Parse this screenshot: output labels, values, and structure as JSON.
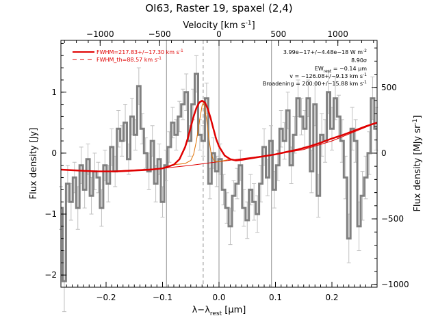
{
  "chart_data": {
    "type": "line",
    "title": "OI63, Raster 19, spaxel (2,4)",
    "xlabel": "λ−λ",
    "xlabel_sub": "rest",
    "xlabel_unit": "[μm]",
    "ylabel": "Flux density [Jy]",
    "y2label": "Flux density [MJy sr",
    "y2label_sup": "-1",
    "y2label_end": "]",
    "top_xlabel": "Velocity [km s",
    "top_xlabel_sup": "-1",
    "top_xlabel_end": "]",
    "xlim": [
      -0.28,
      0.28
    ],
    "ylim": [
      -2.2,
      1.85
    ],
    "y2lim": [
      -1020,
      858
    ],
    "top_xlim": [
      -1330,
      1330
    ],
    "xticks": [
      -0.2,
      -0.1,
      0.0,
      0.1,
      0.2
    ],
    "xtick_labels": [
      "−0.2",
      "−0.1",
      "0.0",
      "0.1",
      "0.2"
    ],
    "yticks": [
      -2,
      -1,
      0,
      1
    ],
    "ytick_labels": [
      "−2",
      "−1",
      "0",
      "1"
    ],
    "y2ticks": [
      -1000,
      -500,
      0,
      500
    ],
    "y2tick_labels": [
      "−1000",
      "−500",
      "0",
      "500"
    ],
    "top_xticks": [
      -1000,
      -500,
      0,
      500,
      1000
    ],
    "top_xtick_labels": [
      "−1000",
      "−500",
      "0",
      "500",
      "1000"
    ],
    "vlines_solid": [
      -0.093,
      0.0,
      0.093
    ],
    "vline_dashed": -0.028,
    "legend": {
      "placement": "top-left",
      "entries": [
        {
          "label": "FWHM=217.83+/−17.30 km s",
          "sup": "-1",
          "style": "solid"
        },
        {
          "label": "FWHM_th=88.57 km s",
          "sup": "-1",
          "style": "dashed"
        }
      ]
    },
    "annotations": [
      {
        "text": "3.99e−17+/−4.48e−18 W m",
        "sup": "-2"
      },
      {
        "text": "8.90σ",
        "sup": ""
      },
      {
        "text": "EW",
        "sub": "rest",
        "text2": " = −0.14 μm"
      },
      {
        "text": "v = −126.08+/−9.13 km s",
        "sup": "-1"
      },
      {
        "text": "Broadening = 200.00+/−15.88 km s",
        "sup": "-1"
      }
    ],
    "series": [
      {
        "name": "data",
        "style": "steps",
        "color": "#808080",
        "x": [
          -0.28,
          -0.274,
          -0.268,
          -0.262,
          -0.256,
          -0.25,
          -0.244,
          -0.238,
          -0.232,
          -0.226,
          -0.22,
          -0.214,
          -0.208,
          -0.202,
          -0.196,
          -0.19,
          -0.184,
          -0.178,
          -0.172,
          -0.166,
          -0.16,
          -0.154,
          -0.148,
          -0.142,
          -0.136,
          -0.13,
          -0.124,
          -0.118,
          -0.112,
          -0.106,
          -0.1,
          -0.094,
          -0.088,
          -0.082,
          -0.076,
          -0.07,
          -0.064,
          -0.058,
          -0.052,
          -0.046,
          -0.04,
          -0.034,
          -0.028,
          -0.022,
          -0.016,
          -0.01,
          -0.004,
          0.002,
          0.008,
          0.014,
          0.02,
          0.026,
          0.032,
          0.038,
          0.044,
          0.05,
          0.056,
          0.062,
          0.068,
          0.074,
          0.08,
          0.086,
          0.092,
          0.098,
          0.104,
          0.11,
          0.116,
          0.122,
          0.128,
          0.134,
          0.14,
          0.146,
          0.152,
          0.158,
          0.164,
          0.17,
          0.176,
          0.182,
          0.188,
          0.194,
          0.2,
          0.206,
          0.212,
          0.218,
          0.224,
          0.23,
          0.236,
          0.242,
          0.248,
          0.254,
          0.26,
          0.266,
          0.272,
          0.278
        ],
        "y": [
          -0.9,
          -2.1,
          -0.5,
          -0.8,
          -0.4,
          -0.9,
          -0.2,
          -0.6,
          -0.1,
          -0.7,
          -0.3,
          -0.4,
          -0.9,
          -0.2,
          -0.5,
          0.1,
          -0.3,
          0.4,
          0.2,
          0.5,
          -0.1,
          0.6,
          0.3,
          1.1,
          0.4,
          0.0,
          -0.3,
          0.2,
          -0.5,
          -0.1,
          -0.8,
          -0.2,
          0.1,
          0.5,
          0.3,
          0.6,
          0.8,
          1.0,
          0.2,
          0.8,
          1.3,
          0.3,
          0.2,
          0.9,
          -0.5,
          0.0,
          -0.3,
          -0.1,
          -0.6,
          -0.9,
          -1.2,
          -0.7,
          -0.5,
          -0.2,
          -0.9,
          -1.1,
          -0.6,
          -0.8,
          -1.0,
          -0.5,
          0.1,
          -0.4,
          0.2,
          -0.6,
          -0.2,
          0.4,
          0.2,
          0.7,
          -0.2,
          0.3,
          0.9,
          0.6,
          0.4,
          0.9,
          -0.3,
          0.8,
          -0.7,
          0.3,
          0.2,
          1.0,
          0.4,
          0.9,
          0.6,
          0.2,
          -0.4,
          -1.4,
          0.4,
          0.2,
          -1.2,
          -0.7,
          -0.4,
          0.0,
          0.9,
          0.4
        ],
        "yerr": [
          0.35,
          0.5,
          0.3,
          0.3,
          0.25,
          0.35,
          0.3,
          0.3,
          0.25,
          0.3,
          0.3,
          0.25,
          0.3,
          0.25,
          0.3,
          0.3,
          0.25,
          0.3,
          0.25,
          0.3,
          0.25,
          0.3,
          0.25,
          0.3,
          0.25,
          0.25,
          0.3,
          0.25,
          0.3,
          0.25,
          0.25,
          0.25,
          0.25,
          0.25,
          0.25,
          0.25,
          0.25,
          0.3,
          0.25,
          0.25,
          0.3,
          0.25,
          0.25,
          0.25,
          0.25,
          0.25,
          0.25,
          0.25,
          0.25,
          0.25,
          0.3,
          0.25,
          0.25,
          0.25,
          0.3,
          0.3,
          0.25,
          0.3,
          0.3,
          0.3,
          0.3,
          0.3,
          0.25,
          0.3,
          0.25,
          0.3,
          0.3,
          0.3,
          0.3,
          0.3,
          0.3,
          0.3,
          0.3,
          0.3,
          0.35,
          0.35,
          0.35,
          0.35,
          0.35,
          0.35,
          0.35,
          0.35,
          0.35,
          0.35,
          0.35,
          0.4,
          0.35,
          0.35,
          0.4,
          0.4,
          0.35,
          0.35,
          0.35,
          0.35
        ]
      },
      {
        "name": "FWHM=217.83+/−17.30 km s-1",
        "style": "solid",
        "color": "#e00000",
        "x": [
          -0.28,
          -0.26,
          -0.24,
          -0.22,
          -0.2,
          -0.18,
          -0.16,
          -0.14,
          -0.12,
          -0.1,
          -0.08,
          -0.07,
          -0.06,
          -0.055,
          -0.05,
          -0.045,
          -0.04,
          -0.035,
          -0.03,
          -0.025,
          -0.02,
          -0.015,
          -0.01,
          -0.005,
          0.0,
          0.01,
          0.02,
          0.03,
          0.04,
          0.06,
          0.08,
          0.1,
          0.12,
          0.14,
          0.16,
          0.18,
          0.2,
          0.22,
          0.24,
          0.26,
          0.28
        ],
        "y": [
          -0.27,
          -0.28,
          -0.29,
          -0.3,
          -0.3,
          -0.3,
          -0.29,
          -0.28,
          -0.27,
          -0.25,
          -0.19,
          -0.1,
          0.1,
          0.25,
          0.43,
          0.6,
          0.74,
          0.83,
          0.86,
          0.83,
          0.73,
          0.58,
          0.4,
          0.23,
          0.11,
          -0.04,
          -0.1,
          -0.12,
          -0.11,
          -0.08,
          -0.05,
          -0.02,
          0.02,
          0.06,
          0.11,
          0.17,
          0.24,
          0.3,
          0.37,
          0.44,
          0.5
        ]
      },
      {
        "name": "continuum",
        "style": "thin",
        "color": "#e00000",
        "x": [
          -0.28,
          -0.2,
          -0.1,
          -0.05,
          0.0,
          0.05,
          0.1,
          0.15,
          0.2,
          0.28
        ],
        "y": [
          -0.27,
          -0.3,
          -0.25,
          -0.2,
          -0.14,
          -0.08,
          -0.02,
          0.06,
          0.2,
          0.5
        ]
      },
      {
        "name": "FWHM_th=88.57 km s-1",
        "style": "thin",
        "color": "#e07000",
        "x": [
          -0.08,
          -0.06,
          -0.05,
          -0.045,
          -0.04,
          -0.035,
          -0.03,
          -0.028,
          -0.026,
          -0.022,
          -0.018,
          -0.014,
          -0.01,
          -0.005,
          0.0,
          0.01,
          0.02
        ],
        "y": [
          -0.19,
          -0.17,
          -0.12,
          -0.02,
          0.2,
          0.5,
          0.78,
          0.82,
          0.78,
          0.55,
          0.25,
          0.0,
          -0.11,
          -0.14,
          -0.14,
          -0.12,
          -0.1
        ]
      }
    ]
  }
}
